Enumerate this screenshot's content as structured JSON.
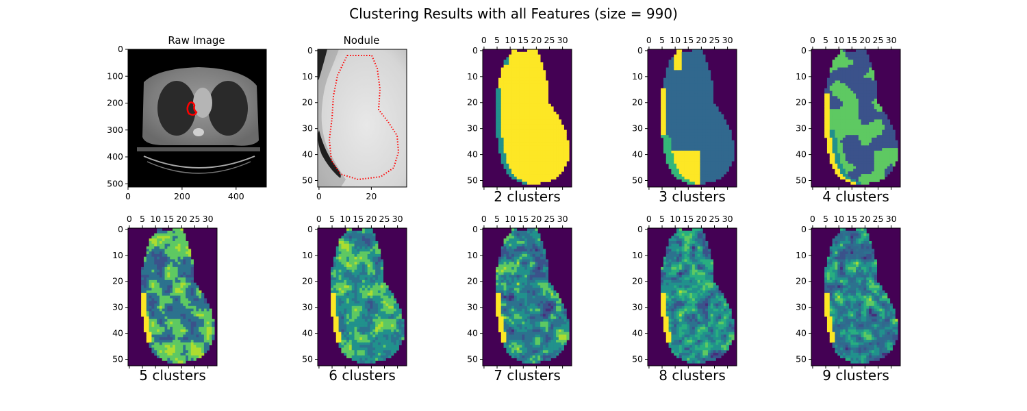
{
  "figure": {
    "title": "Clustering Results with all Features (size = 990)"
  },
  "chart_data": [
    {
      "type": "heatmap",
      "title": "Raw Image",
      "xticks": [
        "0",
        "200",
        "400"
      ],
      "yticks": [
        "0",
        "100",
        "200",
        "300",
        "400",
        "500"
      ],
      "xlim": [
        0,
        512
      ],
      "ylim": [
        512,
        0
      ],
      "annotation": "nodule contour (red)"
    },
    {
      "type": "heatmap",
      "title": "Nodule",
      "xticks": [
        "0",
        "20"
      ],
      "yticks": [
        "0",
        "10",
        "20",
        "30",
        "40",
        "50"
      ],
      "xlim": [
        0,
        34
      ],
      "ylim": [
        53,
        0
      ],
      "annotation": "nodule contour (red dotted)"
    },
    {
      "type": "heatmap",
      "title": "2 clusters",
      "clusters": 2,
      "xticks": [
        "0",
        "5",
        "10",
        "15",
        "20",
        "25",
        "30"
      ],
      "yticks": [
        "0",
        "10",
        "20",
        "30",
        "40",
        "50"
      ],
      "xlim": [
        0,
        34
      ],
      "ylim": [
        53,
        0
      ]
    },
    {
      "type": "heatmap",
      "title": "3 clusters",
      "clusters": 3,
      "xticks": [
        "0",
        "5",
        "10",
        "15",
        "20",
        "25",
        "30"
      ],
      "yticks": [
        "0",
        "10",
        "20",
        "30",
        "40",
        "50"
      ],
      "xlim": [
        0,
        34
      ],
      "ylim": [
        53,
        0
      ]
    },
    {
      "type": "heatmap",
      "title": "4 clusters",
      "clusters": 4,
      "xticks": [
        "0",
        "5",
        "10",
        "15",
        "20",
        "25",
        "30"
      ],
      "yticks": [
        "0",
        "10",
        "20",
        "30",
        "40",
        "50"
      ],
      "xlim": [
        0,
        34
      ],
      "ylim": [
        53,
        0
      ]
    },
    {
      "type": "heatmap",
      "title": "5 clusters",
      "clusters": 5,
      "xticks": [
        "0",
        "5",
        "10",
        "15",
        "20",
        "25",
        "30"
      ],
      "yticks": [
        "0",
        "10",
        "20",
        "30",
        "40",
        "50"
      ],
      "xlim": [
        0,
        34
      ],
      "ylim": [
        53,
        0
      ]
    },
    {
      "type": "heatmap",
      "title": "6 clusters",
      "clusters": 6,
      "xticks": [
        "0",
        "5",
        "10",
        "15",
        "20",
        "25",
        "30"
      ],
      "yticks": [
        "0",
        "10",
        "20",
        "30",
        "40",
        "50"
      ],
      "xlim": [
        0,
        34
      ],
      "ylim": [
        53,
        0
      ]
    },
    {
      "type": "heatmap",
      "title": "7 clusters",
      "clusters": 7,
      "xticks": [
        "0",
        "5",
        "10",
        "15",
        "20",
        "25",
        "30"
      ],
      "yticks": [
        "0",
        "10",
        "20",
        "30",
        "40",
        "50"
      ],
      "xlim": [
        0,
        34
      ],
      "ylim": [
        53,
        0
      ]
    },
    {
      "type": "heatmap",
      "title": "8 clusters",
      "clusters": 8,
      "xticks": [
        "0",
        "5",
        "10",
        "15",
        "20",
        "25",
        "30"
      ],
      "yticks": [
        "0",
        "10",
        "20",
        "30",
        "40",
        "50"
      ],
      "xlim": [
        0,
        34
      ],
      "ylim": [
        53,
        0
      ]
    },
    {
      "type": "heatmap",
      "title": "9 clusters",
      "clusters": 9,
      "xticks": [
        "0",
        "5",
        "10",
        "15",
        "20",
        "25",
        "30"
      ],
      "yticks": [
        "0",
        "10",
        "20",
        "30",
        "40",
        "50"
      ],
      "xlim": [
        0,
        34
      ],
      "ylim": [
        53,
        0
      ]
    }
  ],
  "colors": {
    "background": "#440154",
    "viridis": [
      "#440154",
      "#472d7b",
      "#3b528b",
      "#2c728e",
      "#21918c",
      "#28ae80",
      "#5ec962",
      "#addc30",
      "#fde725"
    ],
    "contour": "#ff0000"
  }
}
